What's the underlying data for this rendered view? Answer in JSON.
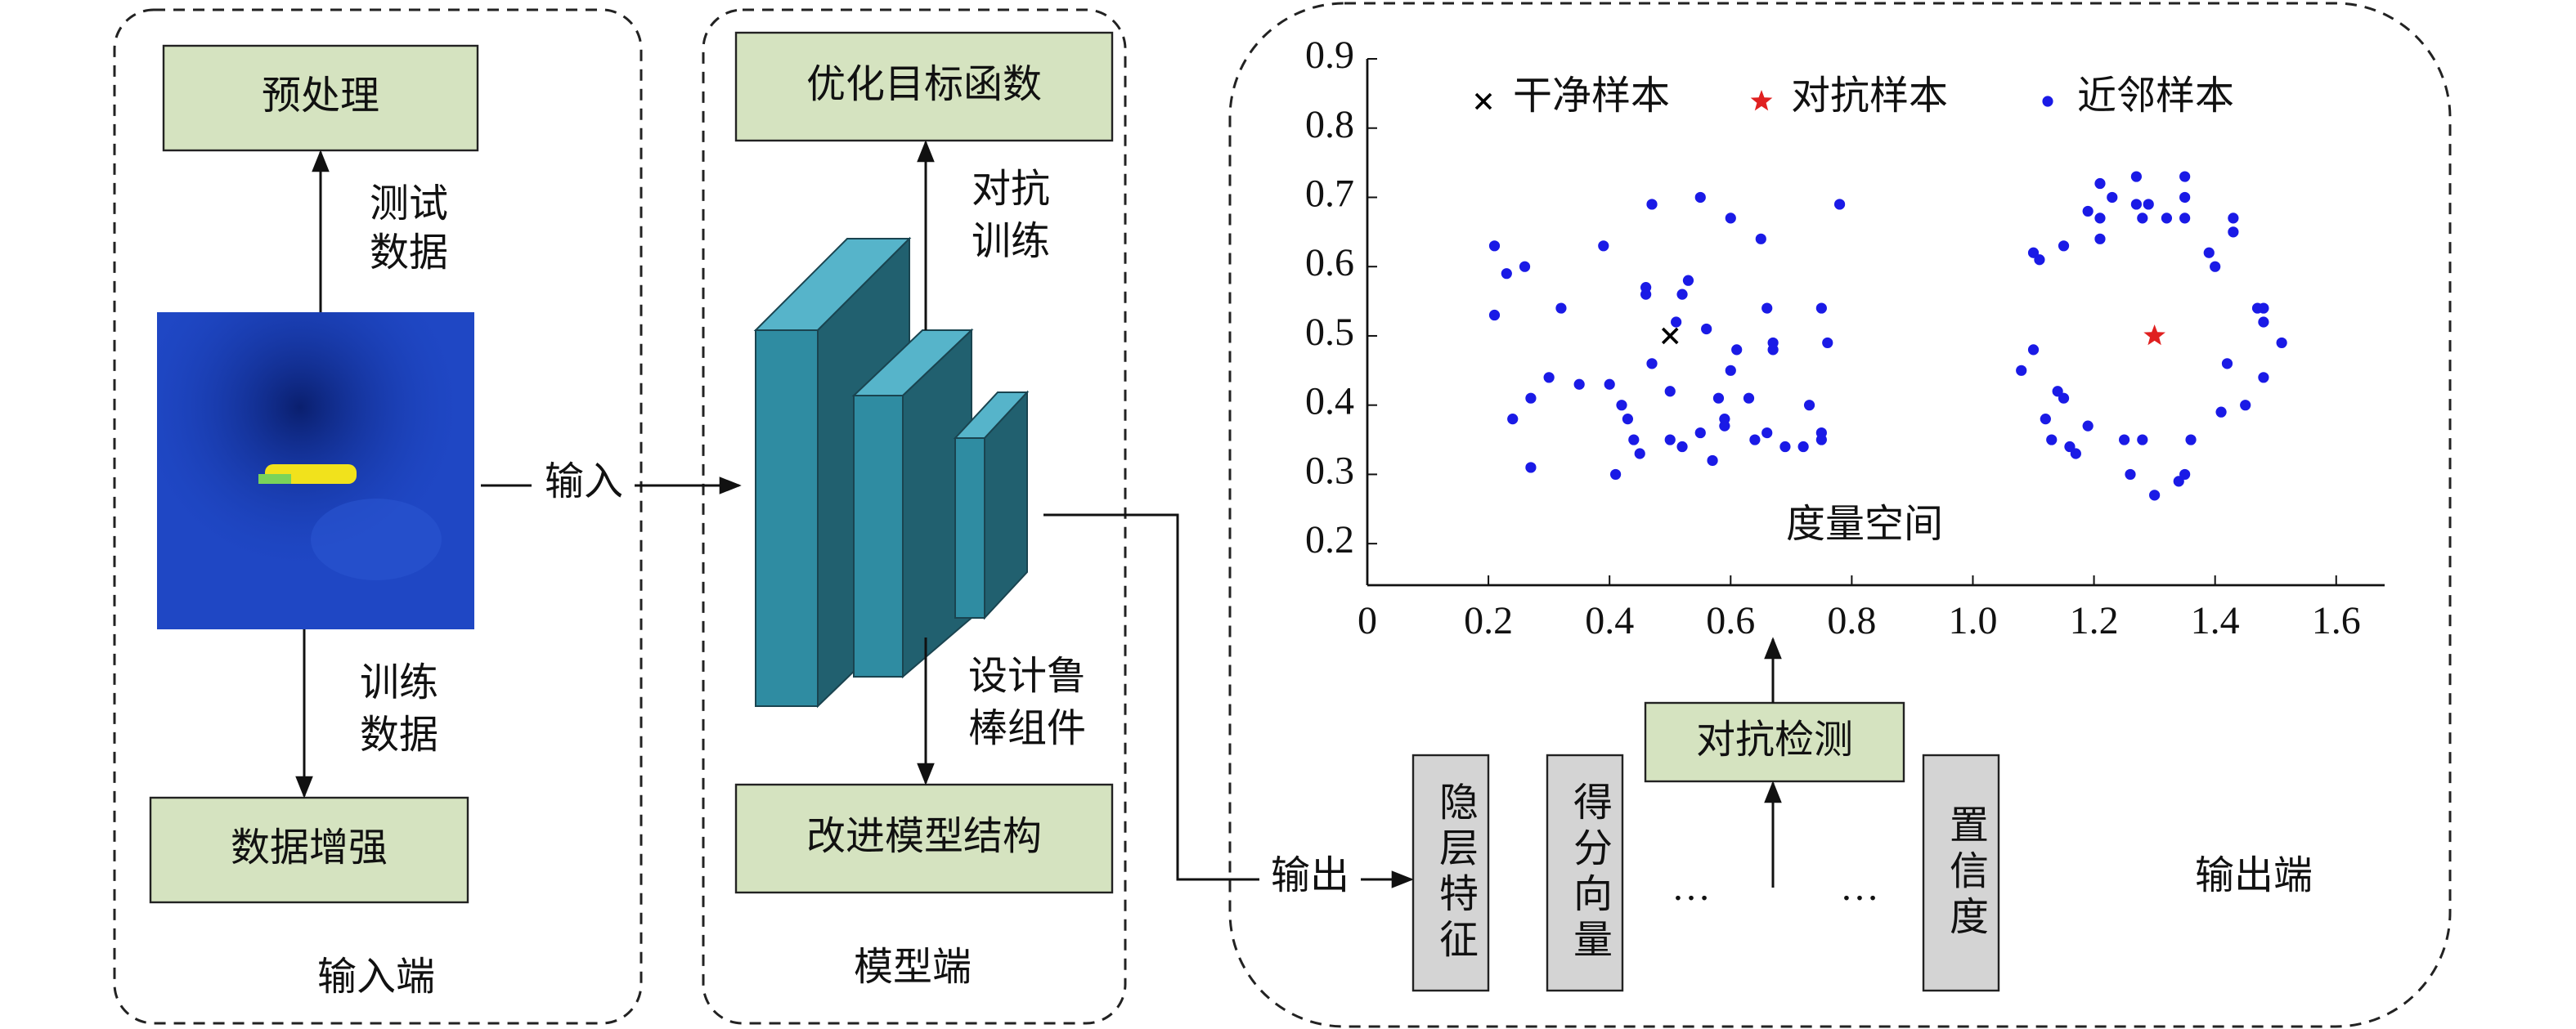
{
  "panels": {
    "input": "输入端",
    "model": "模型端",
    "output": "输出端"
  },
  "nodes": {
    "preprocess": "预处理",
    "augment": "数据增强",
    "objective": "优化目标函数",
    "structure": "改进模型结构",
    "detect": "对抗检测",
    "hidden": "隐层特征",
    "score": "得分向量",
    "ellipsis_1": "…",
    "ellipsis_2": "…",
    "confidence": "置信度"
  },
  "edges": {
    "test_data": [
      "测试",
      "数据"
    ],
    "train_data": [
      "训练",
      "数据"
    ],
    "input": "输入",
    "adv_train": [
      "对抗",
      "训练"
    ],
    "robust": [
      "设计鲁",
      "棒组件"
    ],
    "output": "输出"
  },
  "chart_data": {
    "type": "scatter",
    "annotation": "度量空间",
    "xlim": [
      0,
      1.68
    ],
    "ylim": [
      0.14,
      0.9
    ],
    "xticks": [
      0,
      0.2,
      0.4,
      0.6,
      0.8,
      {
        "value": 1,
        "label": "1.0"
      },
      1.2,
      1.4,
      1.6
    ],
    "yticks": [
      0.2,
      0.3,
      0.4,
      0.5,
      0.6,
      0.7,
      0.8,
      0.9
    ],
    "series": [
      {
        "name": "干净样本",
        "color": "#000000",
        "marker": "x",
        "x": [
          0.5
        ],
        "values": [
          0.5
        ]
      },
      {
        "name": "对抗样本",
        "color": "#e02020",
        "marker": "star",
        "x": [
          1.3
        ],
        "values": [
          0.5
        ]
      },
      {
        "name": "近邻样本",
        "color": "#1a1ae6",
        "marker": "dot",
        "x": [
          0.21,
          0.23,
          0.26,
          0.21,
          0.3,
          0.24,
          0.27,
          0.27,
          0.32,
          0.39,
          0.35,
          0.4,
          0.42,
          0.41,
          0.44,
          0.43,
          0.45,
          0.47,
          0.46,
          0.46,
          0.47,
          0.5,
          0.51,
          0.52,
          0.53,
          0.5,
          0.52,
          0.55,
          0.56,
          0.55,
          0.58,
          0.59,
          0.59,
          0.57,
          0.6,
          0.61,
          0.63,
          0.64,
          0.65,
          0.66,
          0.67,
          0.67,
          0.66,
          0.69,
          0.72,
          0.73,
          0.75,
          0.75,
          0.75,
          0.76,
          0.78,
          0.6,
          1.08,
          1.1,
          1.11,
          1.1,
          1.12,
          1.13,
          1.14,
          1.15,
          1.15,
          1.16,
          1.17,
          1.19,
          1.19,
          1.21,
          1.21,
          1.21,
          1.23,
          1.25,
          1.26,
          1.27,
          1.27,
          1.28,
          1.28,
          1.3,
          1.29,
          1.35,
          1.35,
          1.32,
          1.34,
          1.35,
          1.36,
          1.39,
          1.4,
          1.41,
          1.42,
          1.43,
          1.43,
          1.45,
          1.47,
          1.48,
          1.48,
          1.48,
          1.51,
          1.35
        ],
        "values": [
          0.63,
          0.59,
          0.6,
          0.53,
          0.44,
          0.38,
          0.41,
          0.31,
          0.54,
          0.63,
          0.43,
          0.43,
          0.4,
          0.3,
          0.35,
          0.38,
          0.33,
          0.69,
          0.57,
          0.56,
          0.46,
          0.42,
          0.52,
          0.56,
          0.58,
          0.35,
          0.34,
          0.36,
          0.51,
          0.7,
          0.41,
          0.38,
          0.37,
          0.32,
          0.67,
          0.48,
          0.41,
          0.35,
          0.64,
          0.54,
          0.48,
          0.49,
          0.36,
          0.34,
          0.34,
          0.4,
          0.36,
          0.35,
          0.54,
          0.49,
          0.69,
          0.45,
          0.45,
          0.62,
          0.61,
          0.48,
          0.38,
          0.35,
          0.42,
          0.41,
          0.63,
          0.34,
          0.33,
          0.37,
          0.68,
          0.67,
          0.72,
          0.64,
          0.7,
          0.35,
          0.3,
          0.73,
          0.69,
          0.67,
          0.35,
          0.27,
          0.69,
          0.73,
          0.7,
          0.67,
          0.29,
          0.3,
          0.35,
          0.62,
          0.6,
          0.39,
          0.46,
          0.65,
          0.67,
          0.4,
          0.54,
          0.52,
          0.54,
          0.44,
          0.49,
          0.67
        ]
      }
    ]
  }
}
